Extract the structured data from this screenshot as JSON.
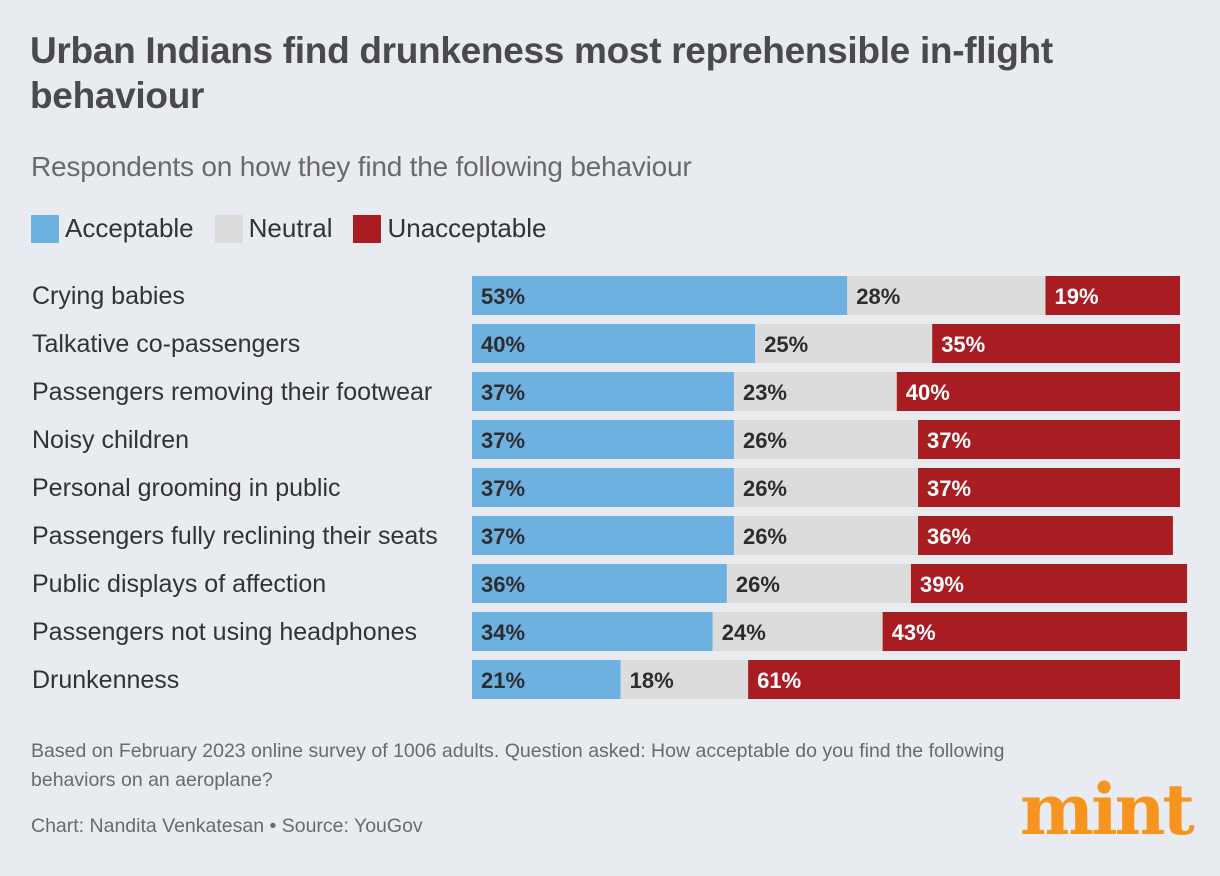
{
  "title": "Urban Indians find drunkeness most reprehensible in-flight behaviour",
  "subtitle": "Respondents on how they find the following behaviour",
  "legend": [
    {
      "label": "Acceptable",
      "color": "#6db1e1"
    },
    {
      "label": "Neutral",
      "color": "#dcdcdd"
    },
    {
      "label": "Unacceptable",
      "color": "#a81c22"
    }
  ],
  "chart_data": {
    "type": "bar",
    "orientation": "horizontal-stacked",
    "title": "Urban Indians find drunkeness most reprehensible in-flight behaviour",
    "subtitle": "Respondents on how they find the following behaviour",
    "categories": [
      "Crying babies",
      "Talkative co-passengers",
      "Passengers removing their footwear",
      "Noisy children",
      "Personal grooming in public",
      "Passengers fully reclining their seats",
      "Public displays of affection",
      "Passengers not using headphones",
      "Drunkenness"
    ],
    "series": [
      {
        "name": "Acceptable",
        "color": "#6db1e1",
        "text_color": "#2d2d2f",
        "values": [
          53,
          40,
          37,
          37,
          37,
          37,
          36,
          34,
          21
        ]
      },
      {
        "name": "Neutral",
        "color": "#dcdcdd",
        "text_color": "#2d2d2f",
        "values": [
          28,
          25,
          23,
          26,
          26,
          26,
          26,
          24,
          18
        ]
      },
      {
        "name": "Unacceptable",
        "color": "#a81c22",
        "text_color": "#ffffff",
        "values": [
          19,
          35,
          40,
          37,
          37,
          36,
          39,
          43,
          61
        ]
      }
    ],
    "unit": "%",
    "xlabel": "",
    "ylabel": "",
    "xlim": [
      0,
      100
    ]
  },
  "footer": {
    "note": "Based on February 2023 online survey of 1006 adults. Question asked: How acceptable do you find the following behaviors on an aeroplane?",
    "credit": "Chart: Nandita Venkatesan • Source: YouGov",
    "logo": "mint"
  }
}
